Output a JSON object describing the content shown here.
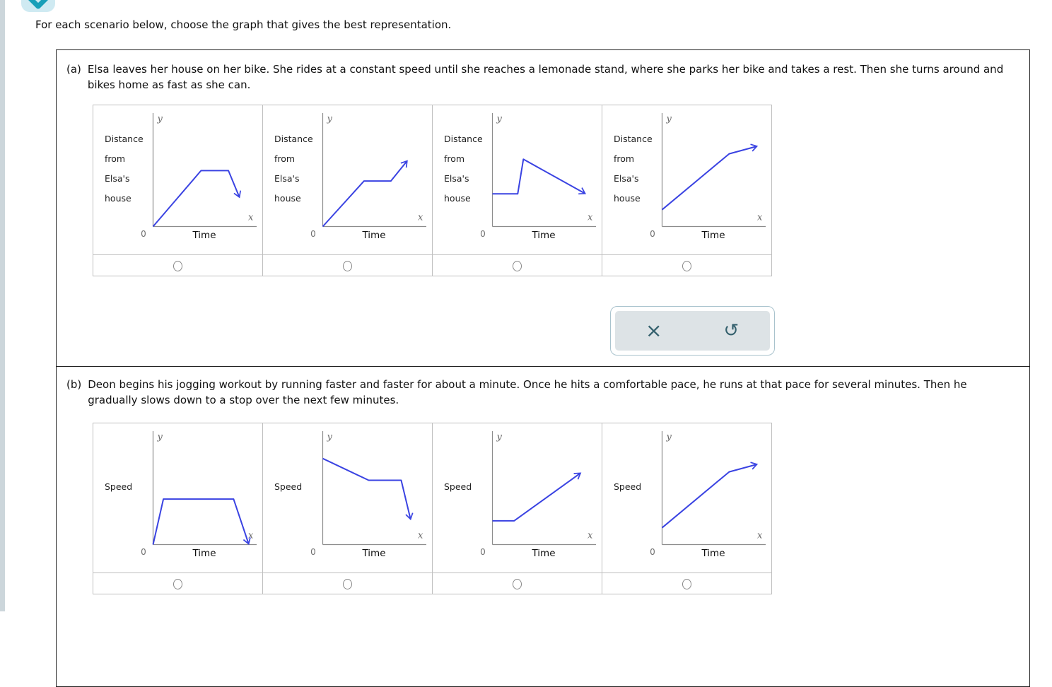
{
  "page": {
    "prompt": "For each scenario below, choose the graph that gives the best representation.",
    "header_icon": "chevron-down-icon",
    "left_bar_color": "#ccd6db"
  },
  "colors": {
    "line": "#3a43e2",
    "axis": "#8c8c8c",
    "icon_teal": "#189fb8",
    "toolbar_icon": "#35616e"
  },
  "toolbar": {
    "clear_glyph": "×",
    "undo_glyph": "↺"
  },
  "scenario_a": {
    "label": "(a)",
    "text": "Elsa leaves her house on her bike. She rides at a constant speed until she reaches a lemonade stand, where she parks her bike and takes a rest. Then she turns around and bikes home as fast as she can.",
    "graphs": [
      {
        "type": "line",
        "ylabel_lines": [
          "Distance",
          "from",
          "Elsa's",
          "house"
        ],
        "xlabel": "Time",
        "origin_label": "0",
        "x_letter": "x",
        "y_letter": "y",
        "points": [
          [
            0,
            0
          ],
          [
            0.465,
            0.565
          ],
          [
            0.73,
            0.565
          ],
          [
            0.835,
            0.3
          ]
        ]
      },
      {
        "type": "line",
        "ylabel_lines": [
          "Distance",
          "from",
          "Elsa's",
          "house"
        ],
        "xlabel": "Time",
        "origin_label": "0",
        "x_letter": "x",
        "y_letter": "y",
        "points": [
          [
            0,
            0
          ],
          [
            0.4,
            0.46
          ],
          [
            0.66,
            0.46
          ],
          [
            0.815,
            0.66
          ]
        ]
      },
      {
        "type": "line",
        "ylabel_lines": [
          "Distance",
          "from",
          "Elsa's",
          "house"
        ],
        "xlabel": "Time",
        "origin_label": "0",
        "x_letter": "x",
        "y_letter": "y",
        "points": [
          [
            0,
            0.33
          ],
          [
            0.245,
            0.33
          ],
          [
            0.3,
            0.68
          ],
          [
            0.895,
            0.335
          ]
        ]
      },
      {
        "type": "line",
        "ylabel_lines": [
          "Distance",
          "from",
          "Elsa's",
          "house"
        ],
        "xlabel": "Time",
        "origin_label": "0",
        "x_letter": "x",
        "y_letter": "y",
        "points": [
          [
            0,
            0.17
          ],
          [
            0.65,
            0.735
          ],
          [
            0.915,
            0.81
          ]
        ]
      }
    ]
  },
  "scenario_b": {
    "label": "(b)",
    "text": "Deon begins his jogging workout by running faster and faster for about a minute. Once he hits a comfortable pace, he runs at that pace for several minutes. Then he gradually slows down to a stop over the next few minutes.",
    "graphs": [
      {
        "type": "line",
        "ylabel_lines": [
          "Speed"
        ],
        "xlabel": "Time",
        "origin_label": "0",
        "x_letter": "x",
        "y_letter": "y",
        "points": [
          [
            0,
            0
          ],
          [
            0.1,
            0.46
          ],
          [
            0.78,
            0.46
          ],
          [
            0.925,
            0.01
          ]
        ]
      },
      {
        "type": "line",
        "ylabel_lines": [
          "Speed"
        ],
        "xlabel": "Time",
        "origin_label": "0",
        "x_letter": "x",
        "y_letter": "y",
        "points": [
          [
            0,
            0.87
          ],
          [
            0.445,
            0.65
          ],
          [
            0.76,
            0.65
          ],
          [
            0.85,
            0.26
          ]
        ]
      },
      {
        "type": "line",
        "ylabel_lines": [
          "Speed"
        ],
        "xlabel": "Time",
        "origin_label": "0",
        "x_letter": "x",
        "y_letter": "y",
        "points": [
          [
            0,
            0.24
          ],
          [
            0.21,
            0.24
          ],
          [
            0.85,
            0.72
          ]
        ]
      },
      {
        "type": "line",
        "ylabel_lines": [
          "Speed"
        ],
        "xlabel": "Time",
        "origin_label": "0",
        "x_letter": "x",
        "y_letter": "y",
        "points": [
          [
            0,
            0.17
          ],
          [
            0.65,
            0.735
          ],
          [
            0.915,
            0.81
          ]
        ]
      }
    ]
  }
}
